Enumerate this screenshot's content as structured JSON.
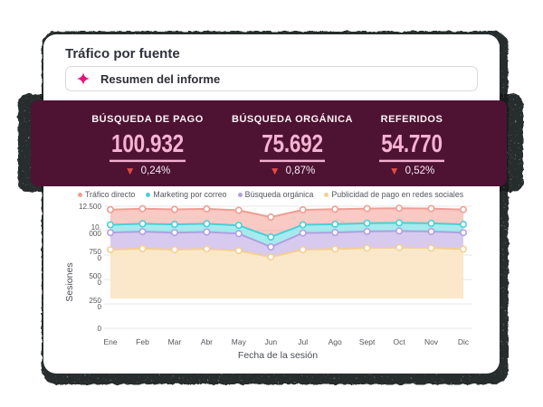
{
  "card": {
    "title": "Tráfico por fuente"
  },
  "ai_summary": {
    "label": "Resumen del informe"
  },
  "colors": {
    "accent_magenta": "#e6157e",
    "banner_bg": "#4e1233",
    "stat_value_pink": "#f5b3d3",
    "delta_red": "#e2443c"
  },
  "stats": {
    "items": [
      {
        "label": "BÚSQUEDA DE PAGO",
        "value": "100.932",
        "delta": "0,24%",
        "direction": "down"
      },
      {
        "label": "BÚSQUEDA ORGÁNICA",
        "value": "75.692",
        "delta": "0,87%",
        "direction": "down"
      },
      {
        "label": "REFERIDOS",
        "value": "54.770",
        "delta": "0,52%",
        "direction": "down"
      }
    ]
  },
  "chart_data": {
    "type": "area",
    "stacked": true,
    "title": "",
    "xlabel": "Fecha de la sesión",
    "ylabel": "Sesiones",
    "x": [
      "Ene",
      "Feb",
      "Mar",
      "Abr",
      "May",
      "Jun",
      "Jul",
      "Ago",
      "Sept",
      "Oct",
      "Nov",
      "Dic"
    ],
    "ylim": [
      0,
      12500
    ],
    "y_ticks": [
      12500,
      10000,
      7500,
      5000,
      2500,
      0
    ],
    "y_tick_display": [
      [
        "12.500"
      ],
      [
        "10.",
        "000"
      ],
      [
        "750",
        "0"
      ],
      [
        "500",
        "0"
      ],
      [
        "250",
        "0"
      ],
      [
        "0"
      ]
    ],
    "grid": true,
    "legend_position": "top",
    "baseline": 3060,
    "series": [
      {
        "name": "Tráfico directo",
        "line": "#ef9e94",
        "fill": "#f5a89e",
        "fill_opacity": 0.62,
        "values": [
          12150,
          12250,
          12180,
          12230,
          12080,
          11390,
          12130,
          12190,
          12260,
          12300,
          12260,
          12160
        ]
      },
      {
        "name": "Marketing por correo",
        "line": "#49cfd7",
        "fill": "#7fe2e6",
        "fill_opacity": 0.7,
        "values": [
          10600,
          10700,
          10640,
          10700,
          10540,
          9350,
          10600,
          10660,
          10760,
          10800,
          10750,
          10640
        ]
      },
      {
        "name": "Búsqueda orgánica",
        "line": "#b29fe0",
        "fill": "#cdbdea",
        "fill_opacity": 0.8,
        "values": [
          9800,
          9900,
          9800,
          9860,
          9690,
          8330,
          9760,
          9810,
          9920,
          9960,
          9910,
          9800
        ]
      },
      {
        "name": "Publicidad de pago en redes sociales",
        "line": "#f3cf92",
        "fill": "#fae4c1",
        "fill_opacity": 0.85,
        "values": [
          8050,
          8160,
          8060,
          8120,
          7950,
          7310,
          8060,
          8110,
          8210,
          8260,
          8210,
          8100
        ]
      }
    ]
  }
}
